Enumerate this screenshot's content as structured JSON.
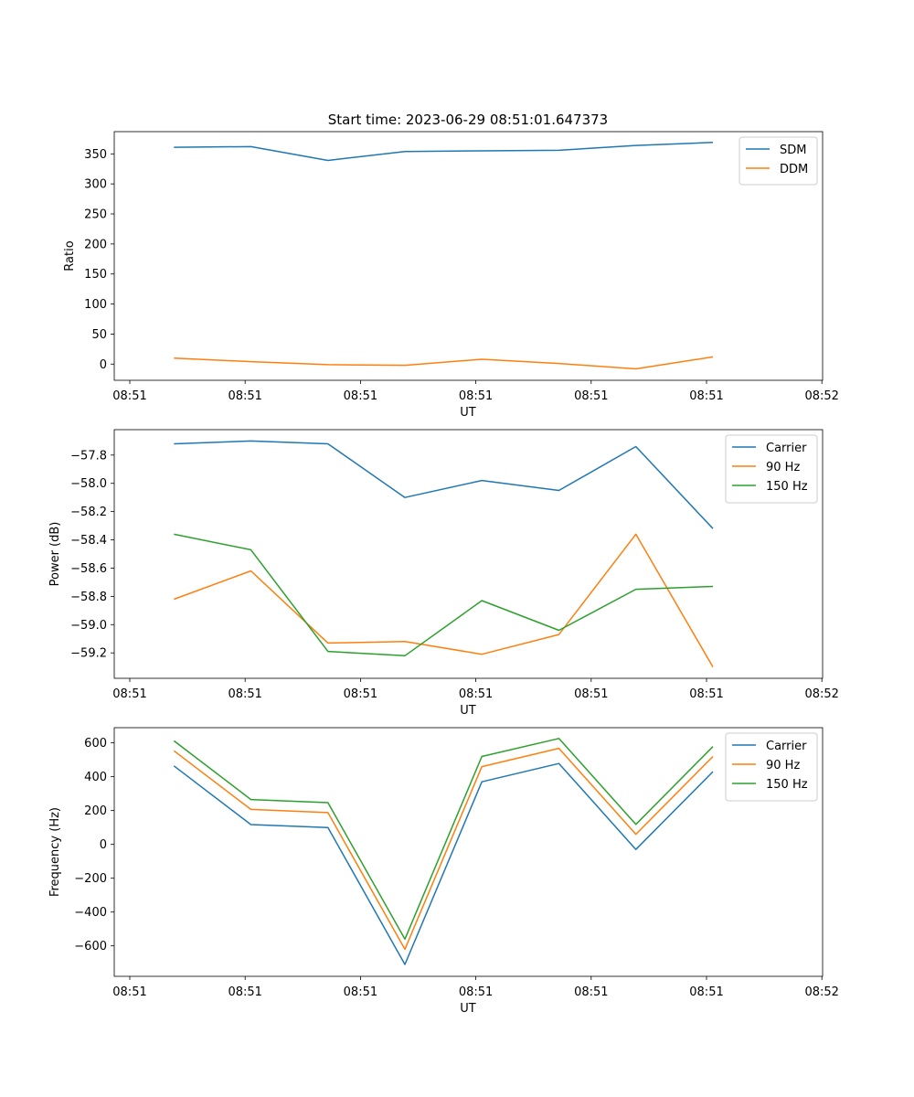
{
  "title": "Start time: 2023-06-29 08:51:01.647373",
  "chart_data": [
    {
      "type": "line",
      "title": "Start time: 2023-06-29 08:51:01.647373",
      "xlabel": "UT",
      "ylabel": "Ratio",
      "x_tick_labels": [
        "08:51",
        "08:51",
        "08:51",
        "08:51",
        "08:51",
        "08:51",
        "08:52"
      ],
      "y_ticks": [
        0,
        50,
        100,
        150,
        200,
        250,
        300,
        350
      ],
      "ylim": [
        -27,
        387
      ],
      "legend_position": "top-right",
      "series": [
        {
          "name": "SDM",
          "color": "#1f77b4",
          "values": [
            361,
            362,
            339,
            354,
            355,
            356,
            364,
            369
          ]
        },
        {
          "name": "DDM",
          "color": "#ff7f0e",
          "values": [
            10,
            4,
            -1,
            -2,
            8,
            1,
            -8,
            12
          ]
        }
      ]
    },
    {
      "type": "line",
      "xlabel": "UT",
      "ylabel": "Power (dB)",
      "x_tick_labels": [
        "08:51",
        "08:51",
        "08:51",
        "08:51",
        "08:51",
        "08:51",
        "08:52"
      ],
      "y_ticks": [
        -57.8,
        -58.0,
        -58.2,
        -58.4,
        -58.6,
        -58.8,
        -59.0,
        -59.2
      ],
      "ylim": [
        -59.38,
        -57.62
      ],
      "legend_position": "top-right",
      "series": [
        {
          "name": "Carrier",
          "color": "#1f77b4",
          "values": [
            -57.72,
            -57.7,
            -57.72,
            -58.1,
            -57.98,
            -58.05,
            -57.74,
            -58.32
          ]
        },
        {
          "name": "90 Hz",
          "color": "#ff7f0e",
          "values": [
            -58.82,
            -58.62,
            -59.13,
            -59.12,
            -59.21,
            -59.07,
            -58.36,
            -59.3
          ]
        },
        {
          "name": "150 Hz",
          "color": "#2ca02c",
          "values": [
            -58.36,
            -58.47,
            -59.19,
            -59.22,
            -58.83,
            -59.04,
            -58.75,
            -58.73
          ]
        }
      ]
    },
    {
      "type": "line",
      "xlabel": "UT",
      "ylabel": "Frequency (Hz)",
      "x_tick_labels": [
        "08:51",
        "08:51",
        "08:51",
        "08:51",
        "08:51",
        "08:51",
        "08:52"
      ],
      "y_ticks": [
        600,
        400,
        200,
        0,
        -200,
        -400,
        -600
      ],
      "ylim": [
        -780,
        690
      ],
      "legend_position": "top-right",
      "series": [
        {
          "name": "Carrier",
          "color": "#1f77b4",
          "values": [
            464,
            117,
            100,
            -710,
            370,
            478,
            -30,
            430
          ]
        },
        {
          "name": "90 Hz",
          "color": "#ff7f0e",
          "values": [
            553,
            207,
            188,
            -620,
            460,
            568,
            60,
            520
          ]
        },
        {
          "name": "150 Hz",
          "color": "#2ca02c",
          "values": [
            612,
            265,
            247,
            -560,
            520,
            626,
            118,
            578
          ]
        }
      ]
    }
  ]
}
